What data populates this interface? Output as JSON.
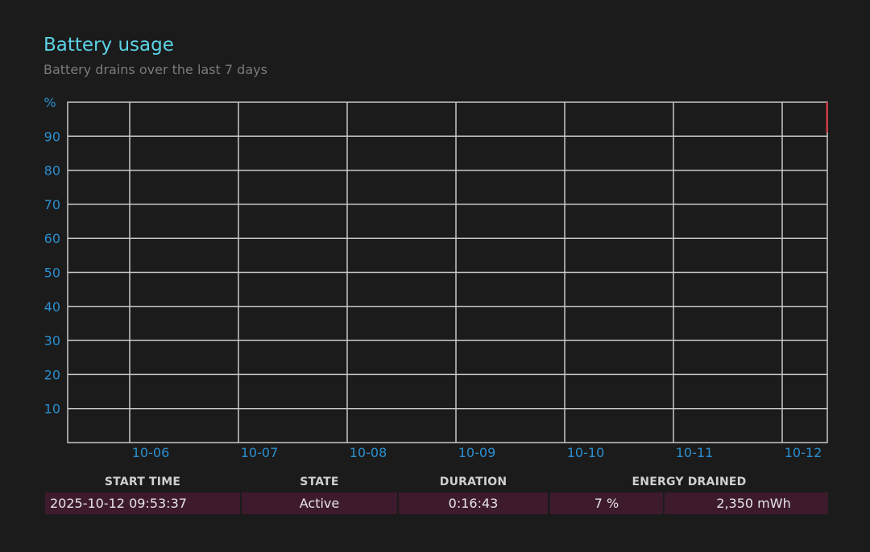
{
  "header": {
    "title": "Battery usage",
    "subtitle": "Battery drains over the last 7 days"
  },
  "chart_data": {
    "type": "line",
    "title": "",
    "ylabel": "%",
    "xlabel": "",
    "x_categories": [
      "10-06",
      "10-07",
      "10-08",
      "10-09",
      "10-10",
      "10-11",
      "10-12"
    ],
    "y_ticks": [
      10,
      20,
      30,
      40,
      50,
      60,
      70,
      80,
      90
    ],
    "ylim": [
      0,
      100
    ],
    "grid": true,
    "series": [
      {
        "x": [
          "2025-10-12 09:53:37",
          "2025-10-12 10:10:20"
        ],
        "y": [
          100,
          93
        ],
        "color": "#e0303a"
      }
    ]
  },
  "table": {
    "headers": {
      "start_time": "START TIME",
      "state": "STATE",
      "duration": "DURATION",
      "energy_drained": "ENERGY DRAINED"
    },
    "row": {
      "start_time": "2025-10-12  09:53:37",
      "state": "Active",
      "duration": "0:16:43",
      "energy_percent": "7 %",
      "energy_mwh": "2,350 mWh"
    }
  },
  "colors": {
    "background": "#1b1b1b",
    "title": "#5cd2e6",
    "axis_labels": "#2a8fcf",
    "grid": "#c8c8c8",
    "row_background": "#3d1a2c",
    "drain_line": "#e0303a"
  }
}
